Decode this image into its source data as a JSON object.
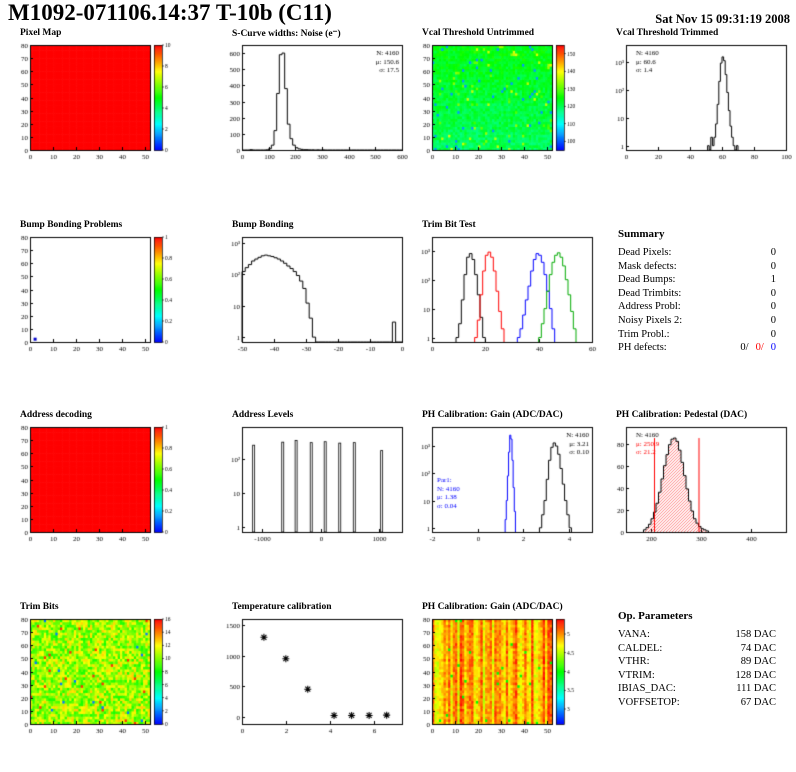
{
  "header": {
    "title": "M1092-071106.14:37 T-10b (C11)",
    "date": "Sat Nov 15 09:31:19 2008"
  },
  "summary": {
    "title": "Summary",
    "rows": [
      [
        "Dead Pixels:",
        "0"
      ],
      [
        "Mask defects:",
        "0"
      ],
      [
        "Dead Bumps:",
        "1"
      ],
      [
        "Dead Trimbits:",
        "0"
      ],
      [
        "Address Probl:",
        "0"
      ],
      [
        "Noisy Pixels 2:",
        "0"
      ],
      [
        "Trim Probl.:",
        "0"
      ]
    ],
    "ph_defects": {
      "label": "PH defects:",
      "parts": [
        {
          "text": "0/",
          "color": "#000000"
        },
        {
          "text": "0/",
          "color": "#ff0000"
        },
        {
          "text": "0",
          "color": "#0000ff"
        }
      ]
    }
  },
  "op_parameters": {
    "title": "Op. Parameters",
    "rows": [
      [
        "VANA:",
        "158 DAC"
      ],
      [
        "CALDEL:",
        "74 DAC"
      ],
      [
        "VTHR:",
        "89 DAC"
      ],
      [
        "VTRIM:",
        "128 DAC"
      ],
      [
        "IBIAS_DAC:",
        "111 DAC"
      ],
      [
        "VOFFSETOP:",
        "67 DAC"
      ]
    ]
  },
  "chart_data": [
    {
      "name": "pixel-map",
      "title": "Pixel Map",
      "type": "heatmap",
      "style": "uniform-red",
      "xlim": [
        0,
        52
      ],
      "ylim": [
        0,
        80
      ],
      "xticks": [
        0,
        10,
        20,
        30,
        40,
        50
      ],
      "yticks": [
        0,
        10,
        20,
        30,
        40,
        50,
        60,
        70,
        80
      ],
      "colorbar": true,
      "cbrange": [
        0,
        10
      ],
      "cbticks": [
        0,
        2,
        4,
        6,
        8,
        10
      ]
    },
    {
      "name": "scurve-noise-widths",
      "title": "S-Curve widths: Noise (e⁻)",
      "type": "hist",
      "xlim": [
        0,
        600
      ],
      "ylim": [
        0,
        650
      ],
      "xticks": [
        0,
        100,
        200,
        300,
        400,
        500,
        600
      ],
      "yticks": [
        0,
        100,
        200,
        300,
        400,
        500,
        600
      ],
      "series": [
        {
          "color": "#000000",
          "x0": 0,
          "binw": 10,
          "counts": [
            0,
            0,
            0,
            2,
            0,
            0,
            0,
            0,
            0,
            1,
            8,
            30,
            120,
            350,
            590,
            600,
            380,
            160,
            70,
            30,
            14,
            7,
            4,
            2,
            2,
            1,
            1,
            0,
            1,
            0,
            1,
            0,
            0,
            0,
            0,
            0,
            0,
            0,
            0,
            0,
            0,
            0,
            0,
            0,
            0,
            0,
            0,
            0,
            0,
            0,
            0,
            0,
            0,
            0,
            0,
            0,
            0,
            0,
            0,
            0
          ]
        }
      ],
      "stats": [
        {
          "pos": "tr",
          "lines": [
            {
              "text": "N: 4160",
              "color": "#000000"
            },
            {
              "text": "μ: 150.6",
              "color": "#000000"
            },
            {
              "text": "σ: 17.5",
              "color": "#000000"
            }
          ]
        }
      ]
    },
    {
      "name": "vcal-threshold-untrimmed",
      "title": "Vcal Threshold Untrimmed",
      "type": "heatmap",
      "style": "noise-cyan",
      "xlim": [
        0,
        52
      ],
      "ylim": [
        0,
        80
      ],
      "xticks": [
        0,
        10,
        20,
        30,
        40,
        50
      ],
      "yticks": [
        0,
        10,
        20,
        30,
        40,
        50,
        60,
        70,
        80
      ],
      "colorbar": true,
      "cbrange": [
        95,
        155
      ],
      "cbticks": [
        100,
        110,
        120,
        130,
        140,
        150
      ]
    },
    {
      "name": "vcal-threshold-trimmed",
      "title": "Vcal Threshold Trimmed",
      "type": "hist",
      "logy": true,
      "xlim": [
        0,
        100
      ],
      "ylim": [
        0.7,
        4000
      ],
      "xticks": [
        0,
        20,
        40,
        60,
        80,
        100
      ],
      "series": [
        {
          "color": "#000000",
          "x0": 51,
          "binw": 1,
          "counts": [
            1,
            0,
            2,
            1,
            2,
            6,
            30,
            200,
            900,
            1500,
            1100,
            350,
            80,
            18,
            5,
            2,
            1,
            0,
            1
          ]
        }
      ],
      "stats": [
        {
          "pos": "tl",
          "lines": [
            {
              "text": "N: 4160",
              "color": "#000000"
            },
            {
              "text": "μ: 60.6",
              "color": "#000000"
            },
            {
              "text": "σ: 1.4",
              "color": "#000000"
            }
          ]
        }
      ]
    },
    {
      "name": "bump-bonding-problems",
      "title": "Bump Bonding Problems",
      "type": "heatmap",
      "style": "empty",
      "xlim": [
        0,
        52
      ],
      "ylim": [
        0,
        80
      ],
      "xticks": [
        0,
        10,
        20,
        30,
        40,
        50
      ],
      "yticks": [
        0,
        10,
        20,
        30,
        40,
        50,
        60,
        70,
        80
      ],
      "colorbar": true,
      "cbrange": [
        0,
        1
      ],
      "cbticks": [
        0,
        0.2,
        0.4,
        0.6,
        0.8,
        1
      ],
      "marker": {
        "x": 2,
        "y": 1
      }
    },
    {
      "name": "bump-bonding",
      "title": "Bump Bonding",
      "type": "hist",
      "logy": true,
      "xlim": [
        -50,
        0
      ],
      "ylim": [
        0.7,
        1500
      ],
      "xticks": [
        -50,
        -40,
        -30,
        -20,
        -10,
        0
      ],
      "series": [
        {
          "color": "#000000",
          "x0": -50,
          "binw": 1,
          "counts": [
            120,
            160,
            200,
            260,
            300,
            340,
            380,
            400,
            380,
            360,
            330,
            300,
            260,
            220,
            180,
            150,
            120,
            90,
            60,
            35,
            12,
            4,
            1,
            0,
            0,
            0,
            0,
            0,
            0,
            0,
            0,
            0,
            0,
            0,
            0,
            0,
            0,
            0,
            0,
            0,
            0,
            0,
            0,
            0,
            0,
            0,
            0,
            3,
            0,
            0
          ]
        }
      ]
    },
    {
      "name": "trim-bit-test",
      "title": "Trim Bit Test",
      "type": "hist",
      "logy": true,
      "xlim": [
        0,
        60
      ],
      "ylim": [
        0.7,
        3000
      ],
      "xticks": [
        0,
        20,
        40,
        60
      ],
      "series": [
        {
          "color": "#000000",
          "x0": 9,
          "binw": 1,
          "counts": [
            1,
            3,
            20,
            150,
            600,
            800,
            500,
            150,
            30,
            5,
            1
          ]
        },
        {
          "color": "#ff0000",
          "x0": 16,
          "binw": 1,
          "counts": [
            1,
            4,
            30,
            200,
            700,
            900,
            600,
            200,
            40,
            8,
            2
          ]
        },
        {
          "color": "#0000ff",
          "x0": 32,
          "binw": 1,
          "counts": [
            1,
            2,
            6,
            20,
            60,
            200,
            500,
            800,
            700,
            400,
            150,
            40,
            10,
            2
          ]
        },
        {
          "color": "#00aa00",
          "x0": 40,
          "binw": 1,
          "counts": [
            1,
            3,
            10,
            40,
            150,
            400,
            700,
            850,
            600,
            300,
            100,
            30,
            8,
            2
          ]
        }
      ]
    },
    {
      "name": "summary",
      "title": "Summary",
      "type": "text"
    },
    {
      "name": "address-decoding",
      "title": "Address decoding",
      "type": "heatmap",
      "style": "uniform-red",
      "xlim": [
        0,
        52
      ],
      "ylim": [
        0,
        80
      ],
      "xticks": [
        0,
        10,
        20,
        30,
        40,
        50
      ],
      "yticks": [
        0,
        10,
        20,
        30,
        40,
        50,
        60,
        70,
        80
      ],
      "colorbar": true,
      "cbrange": [
        0,
        1
      ],
      "cbticks": [
        0,
        0.2,
        0.4,
        0.6,
        0.8,
        1
      ]
    },
    {
      "name": "address-levels",
      "title": "Address Levels",
      "type": "spikes",
      "logy": true,
      "xlim": [
        -1350,
        1400
      ],
      "ylim": [
        0.7,
        900
      ],
      "xticks": [
        -1000,
        0,
        1000
      ],
      "spikes": {
        "x": [
          -1150,
          -650,
          -420,
          -160,
          80,
          330,
          580,
          1050
        ],
        "h": [
          260,
          320,
          360,
          310,
          330,
          300,
          310,
          180
        ]
      }
    },
    {
      "name": "ph-calibration-gain-hist",
      "title": "PH Calibration: Gain (ADC/DAC)",
      "type": "hist",
      "logy": true,
      "xlim": [
        -2,
        5
      ],
      "ylim": [
        0.7,
        5000
      ],
      "xticks": [
        -2,
        0,
        2,
        4
      ],
      "series": [
        {
          "color": "#0000ff",
          "x0": 1.2,
          "binw": 0.05,
          "counts": [
            2,
            10,
            80,
            600,
            2500,
            1800,
            300,
            30,
            4
          ]
        },
        {
          "color": "#000000",
          "x0": 2.7,
          "binw": 0.1,
          "counts": [
            1,
            3,
            10,
            60,
            300,
            900,
            1300,
            1000,
            500,
            150,
            40,
            10,
            3,
            1
          ]
        }
      ],
      "stats": [
        {
          "pos": "tr",
          "lines": [
            {
              "text": "N: 4160",
              "color": "#000000"
            },
            {
              "text": "μ: 3.21",
              "color": "#000000"
            },
            {
              "text": "σ: 0.10",
              "color": "#000000"
            }
          ]
        },
        {
          "pos": "ml",
          "lines": [
            {
              "text": "Par1:",
              "color": "#0000ff"
            },
            {
              "text": "N: 4160",
              "color": "#0000ff"
            },
            {
              "text": "μ: 1.38",
              "color": "#0000ff"
            },
            {
              "text": "σ: 0.04",
              "color": "#0000ff"
            }
          ]
        }
      ]
    },
    {
      "name": "ph-calibration-pedestal",
      "title": "PH Calibration: Pedestal (DAC)",
      "type": "hist",
      "xlim": [
        150,
        470
      ],
      "ylim": [
        0,
        95
      ],
      "xticks": [
        200,
        300,
        400
      ],
      "yticks": [
        0,
        20,
        40,
        60,
        80
      ],
      "series": [
        {
          "color": "#000000",
          "fill": "hatch-red",
          "x0": 185,
          "binw": 5,
          "counts": [
            2,
            4,
            7,
            12,
            18,
            26,
            36,
            48,
            60,
            70,
            79,
            84,
            85,
            82,
            74,
            63,
            51,
            39,
            28,
            19,
            12,
            8,
            5,
            3,
            2,
            1
          ]
        }
      ],
      "vlines": [
        {
          "x": 207,
          "y": 85,
          "color": "#ff0000"
        },
        {
          "x": 296,
          "y": 85,
          "color": "#ff0000"
        }
      ],
      "stats": [
        {
          "pos": "tl",
          "lines": [
            {
              "text": "N: 4160",
              "color": "#000000"
            },
            {
              "text": "μ: 250.9",
              "color": "#ff0000"
            },
            {
              "text": "σ: 21.2",
              "color": "#ff0000"
            }
          ]
        }
      ]
    },
    {
      "name": "trim-bits",
      "title": "Trim Bits",
      "type": "heatmap",
      "style": "noise-green",
      "xlim": [
        0,
        52
      ],
      "ylim": [
        0,
        80
      ],
      "xticks": [
        0,
        10,
        20,
        30,
        40,
        50
      ],
      "yticks": [
        0,
        10,
        20,
        30,
        40,
        50,
        60,
        70,
        80
      ],
      "colorbar": true,
      "cbrange": [
        0,
        16
      ],
      "cbticks": [
        0,
        2,
        4,
        6,
        8,
        10,
        12,
        14,
        16
      ]
    },
    {
      "name": "temperature-calibration",
      "title": "Temperature calibration",
      "type": "scatter",
      "xlim": [
        0,
        7.3
      ],
      "ylim": [
        -120,
        1600
      ],
      "xticks": [
        0,
        2,
        4,
        6
      ],
      "yticks": [
        0,
        500,
        1000,
        1500
      ],
      "points": [
        [
          1,
          1300
        ],
        [
          2,
          950
        ],
        [
          3,
          450
        ],
        [
          4.2,
          20
        ],
        [
          5,
          20
        ],
        [
          5.8,
          20
        ],
        [
          6.6,
          25
        ]
      ]
    },
    {
      "name": "ph-calibration-gain-map",
      "title": "PH Calibration: Gain (ADC/DAC)",
      "type": "heatmap",
      "style": "noise-orange",
      "xlim": [
        0,
        52
      ],
      "ylim": [
        0,
        80
      ],
      "xticks": [
        0,
        10,
        20,
        30,
        40,
        50
      ],
      "yticks": [
        0,
        10,
        20,
        30,
        40,
        50,
        60,
        70,
        80
      ],
      "colorbar": true,
      "cbrange": [
        2.6,
        5.4
      ],
      "cbticks": [
        3,
        3.5,
        4,
        4.5,
        5
      ]
    },
    {
      "name": "op-parameters",
      "title": "Op. Parameters",
      "type": "text"
    }
  ]
}
